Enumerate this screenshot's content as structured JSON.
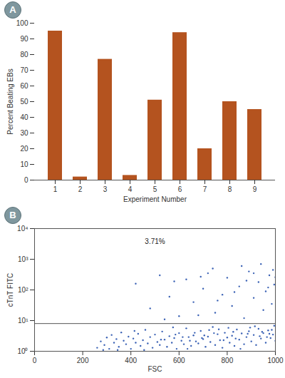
{
  "chart_data": [
    {
      "type": "bar",
      "title": "A",
      "categories": [
        1,
        2,
        3,
        4,
        5,
        6,
        7,
        8,
        9
      ],
      "values": [
        95,
        2,
        77,
        3,
        51,
        94,
        20,
        50,
        45
      ],
      "color": "#b4531f",
      "xlabel": "Experiment Number",
      "ylabel": "Percent Beating EBs",
      "ylim": [
        0,
        100
      ],
      "yticks": [
        0,
        10,
        20,
        30,
        40,
        50,
        60,
        70,
        80,
        90,
        100
      ]
    },
    {
      "type": "scatter",
      "title": "B",
      "x": [
        260,
        275,
        290,
        300,
        310,
        320,
        330,
        340,
        350,
        360,
        370,
        380,
        390,
        400,
        410,
        420,
        430,
        440,
        450,
        460,
        470,
        480,
        490,
        500,
        510,
        520,
        530,
        540,
        550,
        560,
        570,
        580,
        590,
        600,
        610,
        620,
        630,
        640,
        650,
        660,
        670,
        680,
        690,
        700,
        710,
        720,
        730,
        740,
        750,
        760,
        770,
        780,
        790,
        800,
        810,
        820,
        830,
        840,
        850,
        860,
        870,
        880,
        890,
        900,
        910,
        920,
        930,
        940,
        950,
        960,
        970,
        980,
        990,
        1000,
        285,
        345,
        415,
        455,
        525,
        575,
        635,
        695,
        745,
        805,
        855,
        915,
        965,
        995,
        615,
        665,
        725,
        785,
        835,
        885,
        935,
        975,
        945,
        985,
        895,
        825,
        765,
        705,
        645,
        585,
        420,
        480,
        520,
        560,
        600,
        630,
        660,
        700,
        720,
        750,
        780,
        800,
        820,
        850,
        870,
        890,
        910,
        930,
        950,
        960,
        975,
        985,
        995,
        1000,
        540,
        680,
        740,
        860,
        940,
        910,
        880,
        990,
        970,
        830,
        760,
        690,
        580
      ],
      "values": [
        1.3,
        2.1,
        1.6,
        2.8,
        1.2,
        3.4,
        1.9,
        2.5,
        1.4,
        4.1,
        2.2,
        1.7,
        3.0,
        1.2,
        2.6,
        1.9,
        3.7,
        1.5,
        2.3,
        5.0,
        1.8,
        2.9,
        1.3,
        3.5,
        2.0,
        1.6,
        4.4,
        2.4,
        1.4,
        3.1,
        1.9,
        2.7,
        1.2,
        3.9,
        2.2,
        1.7,
        5.6,
        2.9,
        1.5,
        3.3,
        2.1,
        1.8,
        4.6,
        2.5,
        1.4,
        3.0,
        2.0,
        6.2,
        1.6,
        3.6,
        2.3,
        1.3,
        4.0,
        2.8,
        1.9,
        3.2,
        1.5,
        5.1,
        2.4,
        3.8,
        1.7,
        2.9,
        4.5,
        2.1,
        3.4,
        1.6,
        5.4,
        2.6,
        3.9,
        1.9,
        4.8,
        2.7,
        3.5,
        2.2,
        1.1,
        1.1,
        4.6,
        1.1,
        2.4,
        6.0,
        1.2,
        2.7,
        3.9,
        5.8,
        1.2,
        6.5,
        2.9,
        6.8,
        2.9,
        4.0,
        4.9,
        2.3,
        2.6,
        3.7,
        3.1,
        3.7,
        4.3,
        5.0,
        5.9,
        4.3,
        5.2,
        3.3,
        2.2,
        3.5,
        160,
        25,
        300,
        60,
        14,
        220,
        40,
        110,
        350,
        18,
        70,
        250,
        30,
        130,
        12,
        400,
        55,
        180,
        22,
        90,
        300,
        35,
        150,
        260,
        11,
        15,
        500,
        600,
        700,
        350,
        200,
        450,
        120,
        85,
        45,
        270,
        190
      ],
      "color": "#3b62b5",
      "xlabel": "FSC",
      "ylabel": "cTnT FITC",
      "xlim": [
        0,
        1000
      ],
      "xticks": [
        0,
        200,
        400,
        600,
        800,
        1000
      ],
      "ylim": [
        1,
        10000
      ],
      "yticks": [
        {
          "value": 1,
          "label": "10⁰"
        },
        {
          "value": 10,
          "label": "10¹"
        },
        {
          "value": 100,
          "label": "10²"
        },
        {
          "value": 1000,
          "label": "10³"
        },
        {
          "value": 10000,
          "label": "10⁴"
        }
      ],
      "log": "y",
      "gate": 8,
      "annotations": [
        "3.71%"
      ]
    }
  ]
}
